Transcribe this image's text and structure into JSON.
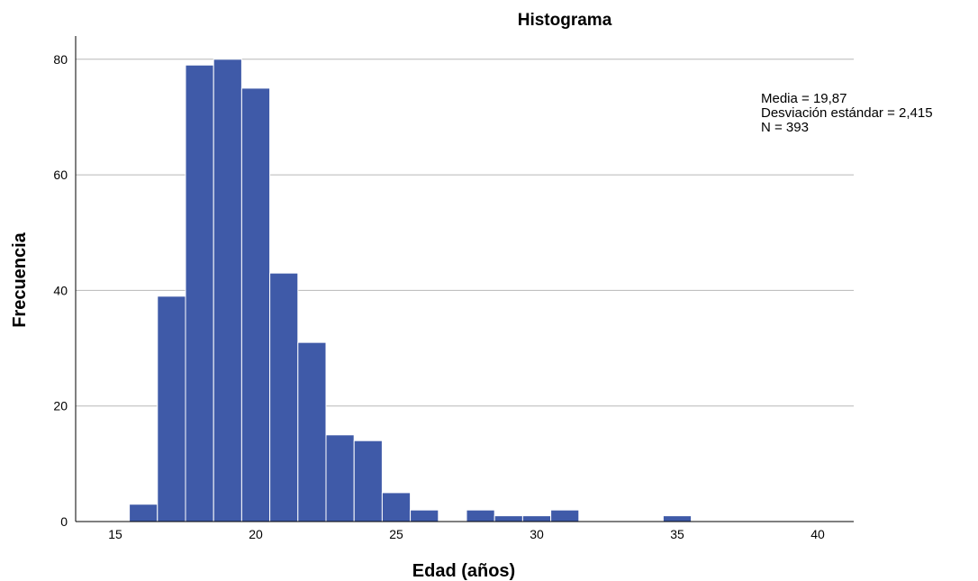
{
  "chart_data": {
    "type": "bar",
    "title": "Histograma",
    "xlabel": "Edad (años)",
    "ylabel": "Frecuencia",
    "xlim": [
      13.5,
      41.3
    ],
    "ylim": [
      0,
      84
    ],
    "xticks": [
      "15",
      "20",
      "25",
      "30",
      "35",
      "40"
    ],
    "yticks": [
      "0",
      "20",
      "40",
      "60",
      "80"
    ],
    "bin_width": 1,
    "bins": [
      {
        "start": 15.5,
        "count": 3
      },
      {
        "start": 16.5,
        "count": 39
      },
      {
        "start": 17.5,
        "count": 79
      },
      {
        "start": 18.5,
        "count": 80
      },
      {
        "start": 19.5,
        "count": 75
      },
      {
        "start": 20.5,
        "count": 43
      },
      {
        "start": 21.5,
        "count": 31
      },
      {
        "start": 22.5,
        "count": 15
      },
      {
        "start": 23.5,
        "count": 14
      },
      {
        "start": 24.5,
        "count": 5
      },
      {
        "start": 25.5,
        "count": 2
      },
      {
        "start": 27.5,
        "count": 2
      },
      {
        "start": 28.5,
        "count": 1
      },
      {
        "start": 29.5,
        "count": 1
      },
      {
        "start": 30.5,
        "count": 2
      },
      {
        "start": 34.5,
        "count": 1
      }
    ],
    "stats": [
      "Media = 19,87",
      "Desviación estándar =  2,415",
      "N = 393"
    ],
    "grid": true,
    "bar_color": "#3f5aa8"
  }
}
